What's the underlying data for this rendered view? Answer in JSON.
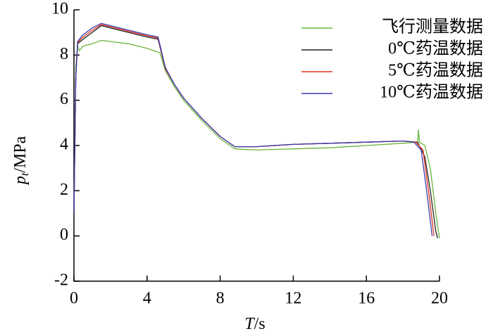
{
  "chart_data": {
    "type": "line",
    "xlabel": "T",
    "xlabel_unit": "/s",
    "ylabel": "p",
    "ylabel_sub": "t",
    "ylabel_unit": "/MPa",
    "xlim": [
      0,
      20
    ],
    "xticks": [
      0,
      4,
      8,
      12,
      16,
      20
    ],
    "ylim": [
      -2,
      10
    ],
    "yticks": [
      -2,
      0,
      2,
      4,
      6,
      8,
      10
    ],
    "legend": "upper right",
    "series": [
      {
        "name": "飞行测量数据",
        "color": "#6ab33b",
        "x": [
          0,
          0.1,
          0.2,
          0.3,
          0.5,
          1,
          1.5,
          2,
          3,
          4,
          4.7,
          5,
          5.5,
          6,
          7,
          8,
          8.8,
          10,
          12,
          14,
          16,
          18,
          18.8,
          18.85,
          18.9,
          19.2,
          19.5,
          19.8,
          20
        ],
        "values": [
          1,
          7.5,
          8.4,
          8.2,
          8.4,
          8.5,
          8.65,
          8.6,
          8.5,
          8.3,
          8.1,
          7.3,
          6.6,
          6.0,
          5.1,
          4.3,
          3.85,
          3.8,
          3.85,
          3.9,
          4.0,
          4.1,
          4.15,
          4.7,
          4.15,
          4.0,
          3.0,
          1.0,
          -0.1
        ]
      },
      {
        "name": "0℃药温数据",
        "color": "#222222",
        "x": [
          0,
          0.1,
          0.2,
          0.5,
          1,
          1.5,
          2,
          3,
          4,
          4.6,
          5,
          5.5,
          6,
          7,
          8,
          8.8,
          10,
          12,
          14,
          16,
          18,
          18.8,
          19.2,
          19.5,
          19.8,
          19.9
        ],
        "values": [
          1,
          7,
          8.5,
          8.7,
          9.0,
          9.3,
          9.2,
          9.0,
          8.8,
          8.7,
          7.4,
          6.7,
          6.1,
          5.2,
          4.4,
          3.95,
          3.95,
          4.05,
          4.1,
          4.15,
          4.2,
          4.15,
          3.5,
          2.0,
          0.2,
          -0.1
        ]
      },
      {
        "name": "5℃药温数据",
        "color": "#e0301e",
        "x": [
          0,
          0.1,
          0.2,
          0.5,
          1,
          1.5,
          2,
          3,
          4,
          4.6,
          5,
          5.5,
          6,
          7,
          8,
          8.8,
          10,
          12,
          14,
          16,
          18,
          18.7,
          19.1,
          19.4,
          19.7
        ],
        "values": [
          1,
          7,
          8.55,
          8.8,
          9.1,
          9.35,
          9.25,
          9.05,
          8.85,
          8.75,
          7.4,
          6.7,
          6.1,
          5.2,
          4.4,
          3.95,
          3.95,
          4.05,
          4.1,
          4.15,
          4.2,
          4.15,
          3.8,
          2.0,
          0
        ]
      },
      {
        "name": "10℃药温数据",
        "color": "#3b3bb0",
        "x": [
          0,
          0.1,
          0.2,
          0.5,
          1,
          1.5,
          2,
          3,
          4,
          4.6,
          5,
          5.5,
          6,
          7,
          8,
          8.8,
          10,
          12,
          14,
          16,
          18,
          18.6,
          19.0,
          19.3,
          19.6
        ],
        "values": [
          1,
          7,
          8.6,
          8.9,
          9.2,
          9.4,
          9.3,
          9.1,
          8.9,
          8.8,
          7.45,
          6.7,
          6.1,
          5.2,
          4.4,
          3.95,
          3.95,
          4.05,
          4.1,
          4.15,
          4.2,
          4.15,
          3.8,
          2.0,
          0
        ]
      }
    ]
  }
}
